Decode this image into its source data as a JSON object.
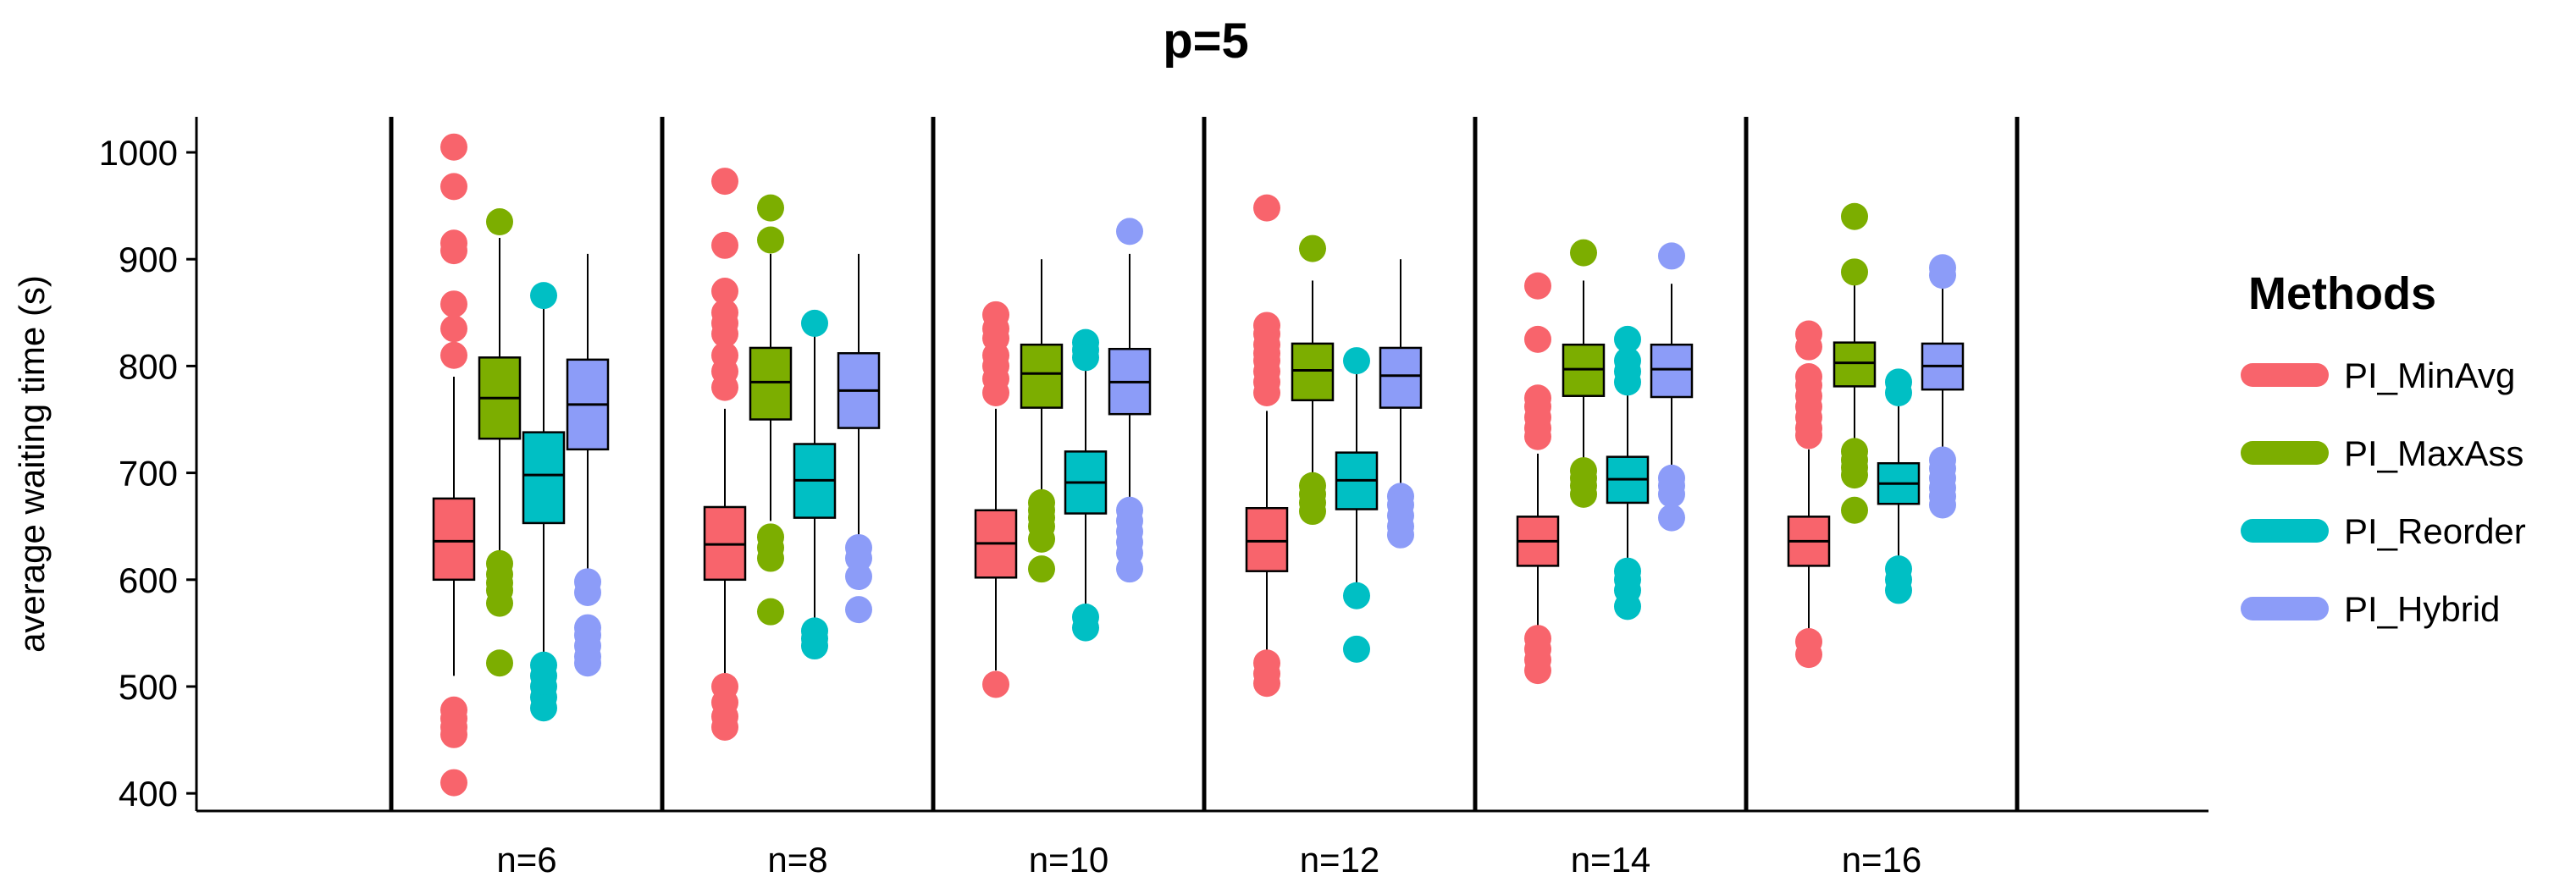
{
  "chart_data": {
    "type": "boxplot",
    "title": "p=5",
    "ylabel": "average waiting time (s)",
    "xlabel": "",
    "ylim": [
      380,
      1035
    ],
    "yticks": [
      400,
      500,
      600,
      700,
      800,
      900,
      1000
    ],
    "categories": [
      "n=6",
      "n=8",
      "n=10",
      "n=12",
      "n=14",
      "n=16"
    ],
    "legend": {
      "title": "Methods",
      "position": "right"
    },
    "series": [
      {
        "name": "PI_MinAvg",
        "color": "#F8646C",
        "boxes": [
          {
            "whisker_low": 510,
            "q1": 600,
            "median": 636,
            "q3": 676,
            "whisker_high": 790,
            "outliers": [
              1005,
              968,
              915,
              908,
              858,
              835,
              810,
              478,
              470,
              462,
              455,
              410
            ]
          },
          {
            "whisker_low": 510,
            "q1": 600,
            "median": 633,
            "q3": 668,
            "whisker_high": 760,
            "outliers": [
              973,
              913,
              870,
              850,
              840,
              830,
              810,
              795,
              780,
              500,
              485,
              472,
              462
            ]
          },
          {
            "whisker_low": 515,
            "q1": 602,
            "median": 634,
            "q3": 665,
            "whisker_high": 760,
            "outliers": [
              848,
              835,
              826,
              810,
              800,
              788,
              775,
              502
            ]
          },
          {
            "whisker_low": 525,
            "q1": 608,
            "median": 636,
            "q3": 667,
            "whisker_high": 758,
            "outliers": [
              948,
              838,
              830,
              820,
              812,
              805,
              795,
              785,
              775,
              522,
              512,
              503
            ]
          },
          {
            "whisker_low": 545,
            "q1": 613,
            "median": 636,
            "q3": 659,
            "whisker_high": 718,
            "outliers": [
              875,
              825,
              770,
              762,
              752,
              742,
              734,
              545,
              535,
              525,
              515
            ]
          },
          {
            "whisker_low": 548,
            "q1": 613,
            "median": 636,
            "q3": 659,
            "whisker_high": 722,
            "outliers": [
              830,
              818,
              790,
              782,
              772,
              762,
              752,
              742,
              735,
              542,
              530
            ]
          }
        ]
      },
      {
        "name": "PI_MaxAss",
        "color": "#7CAE00",
        "boxes": [
          {
            "whisker_low": 620,
            "q1": 732,
            "median": 770,
            "q3": 808,
            "whisker_high": 920,
            "outliers": [
              935,
              615,
              605,
              597,
              590,
              578,
              522
            ]
          },
          {
            "whisker_low": 655,
            "q1": 750,
            "median": 785,
            "q3": 817,
            "whisker_high": 905,
            "outliers": [
              948,
              918,
              640,
              630,
              620,
              570
            ]
          },
          {
            "whisker_low": 678,
            "q1": 761,
            "median": 793,
            "q3": 820,
            "whisker_high": 900,
            "outliers": [
              672,
              665,
              658,
              650,
              638,
              610
            ]
          },
          {
            "whisker_low": 690,
            "q1": 768,
            "median": 796,
            "q3": 821,
            "whisker_high": 880,
            "outliers": [
              910,
              688,
              680,
              672,
              664
            ]
          },
          {
            "whisker_low": 705,
            "q1": 772,
            "median": 797,
            "q3": 820,
            "whisker_high": 880,
            "outliers": [
              906,
              702,
              695,
              688,
              680
            ]
          },
          {
            "whisker_low": 725,
            "q1": 781,
            "median": 803,
            "q3": 822,
            "whisker_high": 880,
            "outliers": [
              940,
              888,
              720,
              712,
              705,
              698,
              665
            ]
          }
        ]
      },
      {
        "name": "PI_Reorder",
        "color": "#00BFC4",
        "boxes": [
          {
            "whisker_low": 525,
            "q1": 653,
            "median": 698,
            "q3": 738,
            "whisker_high": 860,
            "outliers": [
              866,
              520,
              510,
              500,
              490,
              480
            ]
          },
          {
            "whisker_low": 558,
            "q1": 658,
            "median": 693,
            "q3": 727,
            "whisker_high": 828,
            "outliers": [
              840,
              552,
              545,
              538
            ]
          },
          {
            "whisker_low": 575,
            "q1": 662,
            "median": 691,
            "q3": 720,
            "whisker_high": 800,
            "outliers": [
              822,
              815,
              808,
              565,
              555
            ]
          },
          {
            "whisker_low": 595,
            "q1": 666,
            "median": 693,
            "q3": 719,
            "whisker_high": 795,
            "outliers": [
              805,
              585,
              535
            ]
          },
          {
            "whisker_low": 615,
            "q1": 672,
            "median": 694,
            "q3": 715,
            "whisker_high": 775,
            "outliers": [
              825,
              805,
              795,
              785,
              608,
              600,
              590,
              575
            ]
          },
          {
            "whisker_low": 620,
            "q1": 671,
            "median": 690,
            "q3": 709,
            "whisker_high": 765,
            "outliers": [
              785,
              775,
              610,
              600,
              590
            ]
          }
        ]
      },
      {
        "name": "PI_Hybrid",
        "color": "#8C9CF8",
        "boxes": [
          {
            "whisker_low": 610,
            "q1": 722,
            "median": 764,
            "q3": 806,
            "whisker_high": 905,
            "outliers": [
              598,
              588,
              555,
              548,
              538,
              528,
              522
            ]
          },
          {
            "whisker_low": 635,
            "q1": 742,
            "median": 777,
            "q3": 812,
            "whisker_high": 905,
            "outliers": [
              630,
              620,
              603,
              572
            ]
          },
          {
            "whisker_low": 670,
            "q1": 755,
            "median": 785,
            "q3": 816,
            "whisker_high": 905,
            "outliers": [
              926,
              665,
              655,
              645,
              635,
              625,
              610
            ]
          },
          {
            "whisker_low": 690,
            "q1": 761,
            "median": 791,
            "q3": 817,
            "whisker_high": 900,
            "outliers": [
              678,
              670,
              660,
              650,
              642
            ]
          },
          {
            "whisker_low": 700,
            "q1": 771,
            "median": 797,
            "q3": 820,
            "whisker_high": 877,
            "outliers": [
              903,
              695,
              688,
              680,
              658
            ]
          },
          {
            "whisker_low": 718,
            "q1": 778,
            "median": 800,
            "q3": 821,
            "whisker_high": 876,
            "outliers": [
              892,
              885,
              712,
              704,
              695,
              686,
              678,
              670
            ]
          }
        ]
      }
    ]
  }
}
